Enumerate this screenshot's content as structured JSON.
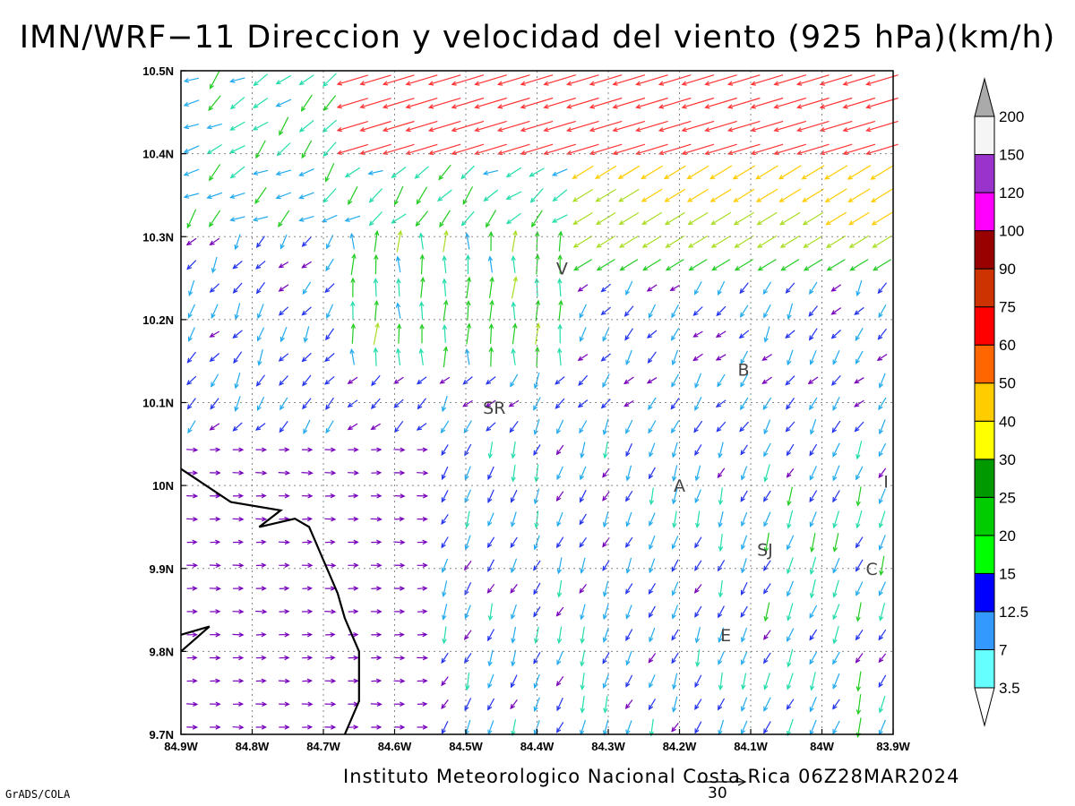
{
  "title": "IMN/WRF−11 Direccion y velocidad del viento (925 hPa)(km/h)",
  "footer": "Instituto Meteorologico Nacional Costa Rica 06Z28MAR2024",
  "credit": "GrADS/COLA",
  "reference_vector": {
    "value": "30"
  },
  "map": {
    "lon_range": [
      -84.9,
      -83.9
    ],
    "lat_range": [
      9.7,
      10.5
    ],
    "x_ticks": [
      "84.9W",
      "84.8W",
      "84.7W",
      "84.6W",
      "84.5W",
      "84.4W",
      "84.3W",
      "84.2W",
      "84.1W",
      "84W",
      "83.9W"
    ],
    "y_ticks": [
      "10.5N",
      "10.4N",
      "10.3N",
      "10.2N",
      "10.1N",
      "10N",
      "9.9N",
      "9.8N",
      "9.7N"
    ],
    "places": [
      {
        "label": "V",
        "lon": -84.365,
        "lat": 10.262
      },
      {
        "label": "SR",
        "lon": -84.46,
        "lat": 10.094
      },
      {
        "label": "B",
        "lon": -84.11,
        "lat": 10.14
      },
      {
        "label": "A",
        "lon": -84.2,
        "lat": 10.0
      },
      {
        "label": "I",
        "lon": -83.91,
        "lat": 10.005
      },
      {
        "label": "SJ",
        "lon": -84.08,
        "lat": 9.923
      },
      {
        "label": "C",
        "lon": -83.93,
        "lat": 9.9
      },
      {
        "label": "E",
        "lon": -84.135,
        "lat": 9.82
      }
    ],
    "coastline": [
      [
        -84.9,
        10.02
      ],
      [
        -84.83,
        9.98
      ],
      [
        -84.76,
        9.97
      ],
      [
        -84.79,
        9.95
      ],
      [
        -84.74,
        9.96
      ],
      [
        -84.72,
        9.95
      ],
      [
        -84.71,
        9.93
      ],
      [
        -84.7,
        9.91
      ],
      [
        -84.69,
        9.89
      ],
      [
        -84.68,
        9.87
      ],
      [
        -84.67,
        9.84
      ],
      [
        -84.66,
        9.82
      ],
      [
        -84.65,
        9.8
      ],
      [
        -84.65,
        9.74
      ],
      [
        -84.67,
        9.7
      ]
    ],
    "coast_nicoya": [
      [
        -84.9,
        9.8
      ],
      [
        -84.86,
        9.83
      ],
      [
        -84.9,
        9.82
      ]
    ]
  },
  "colorbar": {
    "levels": [
      "3.5",
      "7",
      "12.5",
      "15",
      "20",
      "25",
      "30",
      "40",
      "50",
      "60",
      "75",
      "90",
      "100",
      "120",
      "150",
      "200"
    ],
    "colors": [
      "#66ffff",
      "#3399ff",
      "#0000ff",
      "#00ff00",
      "#00cc00",
      "#009900",
      "#ffff00",
      "#ffcc00",
      "#ff6600",
      "#ff0000",
      "#cc3300",
      "#990000",
      "#ff00ff",
      "#9933cc",
      "#f5f5f5"
    ],
    "cap_top_color": "#aaaaaa",
    "cap_bottom_color": "#ffffff"
  },
  "wind_field": {
    "description_colors": [
      "#7700bb",
      "#2233ee",
      "#22aaee",
      "#22ddaa",
      "#22cc22",
      "#aadd22",
      "#ffcc00",
      "#ff8800",
      "#ff3333"
    ]
  }
}
